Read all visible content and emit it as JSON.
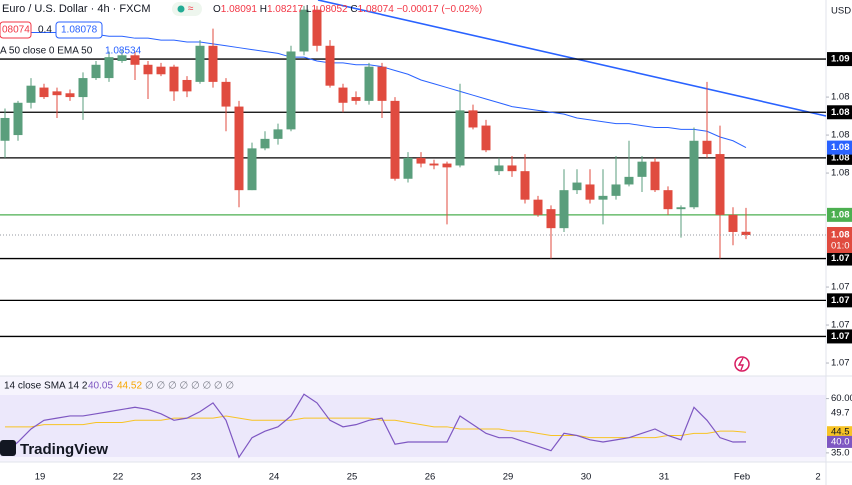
{
  "chart_data": {
    "type": "candlestick",
    "title": "Euro / U.S. Dollar · 4h · FXCM",
    "ohlc_letters": [
      "O",
      "H",
      "L",
      "C"
    ],
    "change": "−0.00017 (−0.02%)",
    "bid_label": "08074",
    "spread": 0.4,
    "ask": 1.08078,
    "currency": "USD",
    "categories": [
      null,
      null,
      null,
      "19",
      null,
      null,
      null,
      null,
      null,
      "22",
      null,
      null,
      null,
      null,
      null,
      "23",
      null,
      null,
      null,
      null,
      null,
      "24",
      null,
      null,
      null,
      null,
      null,
      "25",
      null,
      null,
      null,
      null,
      null,
      "26",
      null,
      null,
      null,
      null,
      null,
      "29",
      null,
      null,
      null,
      null,
      null,
      "30",
      null,
      null,
      null,
      null,
      null,
      "31",
      null,
      null,
      null,
      null,
      null,
      "Feb"
    ],
    "x_extra_label": "2",
    "open": [
      1.0857,
      1.086,
      1.0877,
      1.0885,
      1.0883,
      1.0882,
      1.088,
      1.089,
      1.089,
      1.0899,
      1.0902,
      1.0897,
      1.0896,
      1.0896,
      1.0889,
      1.0888,
      1.0907,
      1.0888,
      1.0875,
      1.0831,
      1.0853,
      1.0858,
      1.0863,
      1.0904,
      1.0926,
      1.0907,
      1.0885,
      1.088,
      1.0878,
      1.0896,
      1.0878,
      1.0837,
      1.0848,
      1.0845,
      1.0845,
      1.0844,
      1.0873,
      1.0865,
      1.0841,
      1.0844,
      1.0841,
      1.0826,
      1.0821,
      1.0811,
      1.0831,
      1.0834,
      1.0826,
      1.0828,
      1.0834,
      1.0838,
      1.0846,
      1.0831,
      1.0821,
      1.0822,
      1.0857,
      1.085,
      1.0818,
      1.08091
    ],
    "high": [
      1.0874,
      1.0878,
      1.089,
      1.0887,
      1.0885,
      1.0884,
      1.0893,
      1.0899,
      1.0904,
      1.0905,
      1.0904,
      1.0899,
      1.0898,
      1.0897,
      1.0891,
      1.091,
      1.0916,
      1.089,
      1.0878,
      1.0856,
      1.0862,
      1.0866,
      1.0907,
      1.0928,
      1.0928,
      1.091,
      1.0887,
      1.0883,
      1.0898,
      1.0898,
      1.088,
      1.0851,
      1.0851,
      1.0847,
      1.0846,
      1.0887,
      1.0876,
      1.0868,
      1.0848,
      1.0849,
      1.085,
      1.0828,
      1.0823,
      1.0842,
      1.0842,
      1.0842,
      1.0842,
      1.0849,
      1.0857,
      1.0849,
      1.0848,
      1.0833,
      1.0823,
      1.0864,
      1.0888,
      1.0865,
      1.0822,
      1.08217
    ],
    "low": [
      1.0848,
      1.0857,
      1.0874,
      1.0879,
      1.0869,
      1.0878,
      1.0868,
      1.0889,
      1.0888,
      1.0898,
      1.0889,
      1.0879,
      1.0891,
      1.0878,
      1.088,
      1.0887,
      1.0885,
      1.0862,
      1.0822,
      1.0831,
      1.0852,
      1.0855,
      1.0862,
      1.0902,
      1.0904,
      1.0885,
      1.0872,
      1.0876,
      1.0876,
      1.0869,
      1.0836,
      1.0835,
      1.0843,
      1.0842,
      1.0813,
      1.0843,
      1.0863,
      1.0851,
      1.0839,
      1.0838,
      1.0824,
      1.0817,
      1.0795,
      1.0809,
      1.0829,
      1.0824,
      1.0813,
      1.0826,
      1.0833,
      1.083,
      1.083,
      1.0818,
      1.0806,
      1.0821,
      1.0848,
      1.0795,
      1.0802,
      1.08052
    ],
    "close": [
      1.0869,
      1.0877,
      1.0886,
      1.088,
      1.0881,
      1.088,
      1.089,
      1.0897,
      1.0901,
      1.0902,
      1.0897,
      1.0892,
      1.0892,
      1.0883,
      1.0883,
      1.0907,
      1.0888,
      1.0875,
      1.0831,
      1.0853,
      1.0858,
      1.0863,
      1.0904,
      1.0926,
      1.0907,
      1.0886,
      1.0877,
      1.0878,
      1.0896,
      1.0878,
      1.0837,
      1.0848,
      1.0845,
      1.0844,
      1.0843,
      1.0873,
      1.0864,
      1.0852,
      1.0844,
      1.0841,
      1.0826,
      1.0818,
      1.0811,
      1.0831,
      1.0835,
      1.0826,
      1.0828,
      1.0834,
      1.0838,
      1.0846,
      1.0831,
      1.0821,
      1.0822,
      1.0857,
      1.085,
      1.0818,
      1.0809,
      1.08074
    ],
    "up_color": "#5a9e7c",
    "down_color": "#e04b3f",
    "last_price_labels": [
      "1.08",
      "01:0"
    ],
    "ylim": [
      1.07337,
      1.09311
    ],
    "yticks": [
      {
        "value": 1.088,
        "label": "1.08"
      },
      {
        "value": 1.086,
        "label": "1.08"
      },
      {
        "value": 1.084,
        "label": "1.08"
      },
      {
        "value": 1.078,
        "label": "1.07"
      },
      {
        "value": 1.076,
        "label": "1.07"
      },
      {
        "value": 1.074,
        "label": "1.07"
      }
    ],
    "levels": [
      {
        "value": 1.09,
        "label": "1.09",
        "color": "#000000"
      },
      {
        "value": 1.0872,
        "label": "1.08",
        "color": "#000000"
      },
      {
        "value": 1.0848,
        "label": "1.08",
        "color": "#000000"
      },
      {
        "value": 1.0818,
        "label": "1.08",
        "color": "#4caf50"
      },
      {
        "value": 1.0795,
        "label": "1.07",
        "color": "#000000"
      },
      {
        "value": 1.0773,
        "label": "1.07",
        "color": "#000000"
      },
      {
        "value": 1.0754,
        "label": "1.07",
        "color": "#000000"
      }
    ],
    "ema": {
      "name": "A 50 close 0 EMA 50",
      "color": "#2962ff",
      "last_label": "1.08",
      "values": [
        1.0915,
        1.0915,
        1.0914,
        1.0914,
        1.0914,
        1.0914,
        1.0913,
        1.0913,
        1.0912,
        1.0912,
        1.0911,
        1.0911,
        1.091,
        1.091,
        1.0909,
        1.0909,
        1.0908,
        1.0907,
        1.0906,
        1.0905,
        1.0904,
        1.0903,
        1.0901,
        1.0901,
        1.0899,
        1.0898,
        1.0898,
        1.0897,
        1.0897,
        1.0896,
        1.0894,
        1.0892,
        1.0889,
        1.0887,
        1.0885,
        1.0883,
        1.0881,
        1.0879,
        1.0877,
        1.0875,
        1.0874,
        1.0873,
        1.0872,
        1.0871,
        1.0869,
        1.0868,
        1.0867,
        1.0866,
        1.0866,
        1.0865,
        1.0864,
        1.0864,
        1.0863,
        1.0863,
        1.0862,
        1.0859,
        1.0857,
        1.08534
      ]
    },
    "rsi": {
      "name": "14 close SMA 14 2",
      "color": "#7e57c2",
      "last_label": "40.0",
      "values": [
        35,
        40,
        46,
        50,
        51,
        52,
        52,
        53,
        54,
        55,
        56,
        55,
        53,
        50,
        51,
        54,
        58,
        50,
        33,
        42,
        45,
        47,
        52,
        62,
        58,
        50,
        47,
        48,
        50,
        51,
        39,
        40,
        40,
        40,
        40,
        52,
        48,
        44,
        42,
        42,
        40,
        38,
        36,
        44,
        43,
        41,
        40,
        41,
        42,
        44,
        46,
        43,
        41,
        56,
        50,
        42,
        40,
        40.05
      ]
    },
    "rsi_sma": {
      "color": "#f7c325",
      "last_label": "44.5",
      "values": [
        47,
        47,
        47,
        48,
        48,
        48,
        48,
        49,
        49,
        49,
        50,
        50,
        50,
        51,
        51,
        51,
        51,
        52,
        51,
        50,
        50,
        50,
        50,
        51,
        51,
        51,
        51,
        51,
        51,
        50,
        50,
        49,
        48,
        47,
        47,
        46,
        46,
        46,
        46,
        45,
        45,
        44,
        43,
        43,
        43,
        42,
        42,
        42,
        42,
        42,
        42,
        43,
        43,
        44,
        44,
        45,
        45,
        44.52
      ]
    },
    "rsi_empty": "∅ ∅ ∅ ∅ ∅ ∅ ∅ ∅",
    "rsi_level_label": "49.7",
    "rsi_ylim": [
      30.8,
      70.4
    ],
    "rsi_yticks": [
      {
        "value": 60,
        "label": "60.00"
      },
      {
        "value": 35,
        "label": "35.0"
      }
    ],
    "brand": "TradingView"
  }
}
